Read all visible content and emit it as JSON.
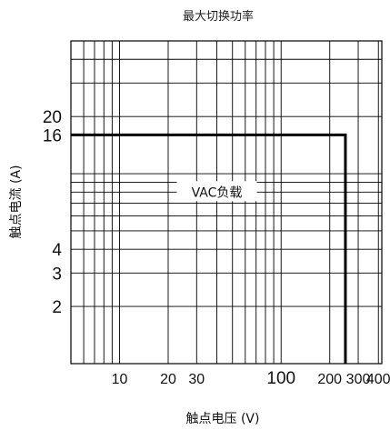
{
  "chart_data": {
    "type": "line",
    "title": "最大切换功率",
    "xlabel": "触点电压 (V)",
    "ylabel": "触点电流 (A)",
    "x_scale": "log",
    "y_scale": "log",
    "xlim": [
      5,
      420
    ],
    "ylim": [
      1,
      50
    ],
    "x_ticks": [
      {
        "value": 10,
        "label": "10"
      },
      {
        "value": 20,
        "label": "20"
      },
      {
        "value": 30,
        "label": "30"
      },
      {
        "value": 100,
        "label": "100"
      },
      {
        "value": 200,
        "label": "200"
      },
      {
        "value": 300,
        "label": "300"
      },
      {
        "value": 400,
        "label": "400"
      }
    ],
    "y_ticks": [
      {
        "value": 2,
        "label": "2"
      },
      {
        "value": 3,
        "label": "3"
      },
      {
        "value": 4,
        "label": "4"
      },
      {
        "value": 16,
        "label": "16"
      },
      {
        "value": 20,
        "label": "20"
      }
    ],
    "grid": true,
    "series": [
      {
        "x": [
          5,
          250,
          250
        ],
        "y": [
          16,
          16,
          1
        ]
      }
    ],
    "annotations": [
      {
        "text": "VAC负载",
        "x": 40,
        "y": 8
      }
    ]
  }
}
